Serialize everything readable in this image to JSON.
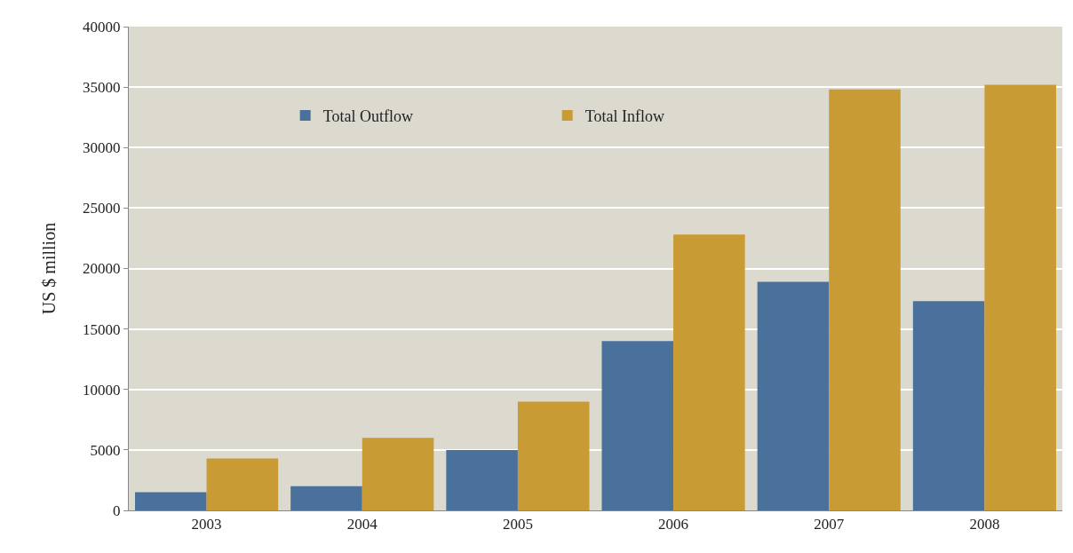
{
  "chart_data": {
    "type": "bar",
    "ylabel": "US $ million",
    "categories": [
      "2003",
      "2004",
      "2005",
      "2006",
      "2007",
      "2008"
    ],
    "series": [
      {
        "name": "Total Outflow",
        "color": "#4a709c",
        "values": [
          1500,
          2000,
          5000,
          14000,
          18900,
          17300
        ]
      },
      {
        "name": "Total Inflow",
        "color": "#c99b34",
        "values": [
          4300,
          6000,
          9000,
          22800,
          34800,
          35200
        ]
      }
    ],
    "ylim": [
      0,
      40000
    ],
    "yticks": [
      0,
      5000,
      10000,
      15000,
      20000,
      25000,
      30000,
      35000,
      40000
    ],
    "grid": "y",
    "legend": "top left"
  }
}
